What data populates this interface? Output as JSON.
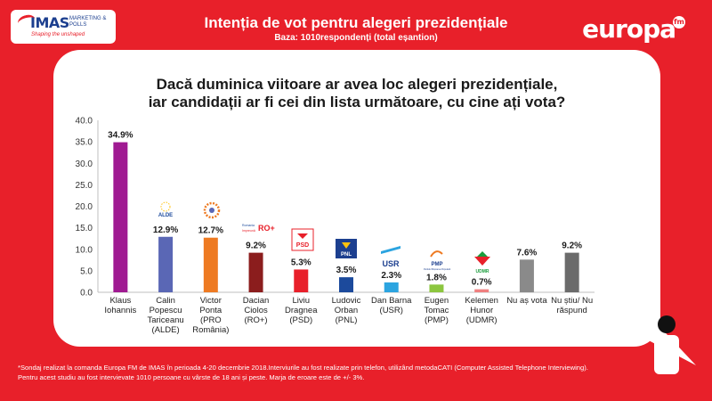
{
  "header": {
    "imas_logo_text": "IMAS",
    "imas_logo_sub": "MARKETING & POLLS",
    "imas_tagline": "Shaping the unshaped",
    "title": "Intenția de vot pentru alegeri prezidențiale",
    "base": "Baza: 1010respondenți (total eșantion)",
    "europa_logo": "europa",
    "europa_fm": "fm"
  },
  "question": {
    "line1": "Dacă duminica viitoare ar avea loc alegeri prezidențiale,",
    "line2": "iar candidații ar fi cei din lista următoare, cu cine ați vota?"
  },
  "chart_data": {
    "type": "bar",
    "categories": [
      [
        "Klaus",
        "Iohannis"
      ],
      [
        "Calin",
        "Popescu",
        "Tariceanu",
        "(ALDE)"
      ],
      [
        "Victor",
        "Ponta",
        "(PRO",
        "România)"
      ],
      [
        "Dacian",
        "Ciolos",
        "(RO+)"
      ],
      [
        "Liviu",
        "Dragnea",
        "(PSD)"
      ],
      [
        "Ludovic",
        "Orban",
        "(PNL)"
      ],
      [
        "Dan Barna",
        "(USR)"
      ],
      [
        "Eugen",
        "Tomac",
        "(PMP)"
      ],
      [
        "Kelemen",
        "Hunor",
        "(UDMR)"
      ],
      [
        "Nu aș vota"
      ],
      [
        "Nu știu/ Nu",
        "răspund"
      ]
    ],
    "values": [
      34.9,
      12.9,
      12.7,
      9.2,
      5.3,
      3.5,
      2.3,
      1.8,
      0.7,
      7.6,
      9.2
    ],
    "value_labels": [
      "34.9%",
      "12.9%",
      "12.7%",
      "9.2%",
      "5.3%",
      "3.5%",
      "2.3%",
      "1.8%",
      "0.7%",
      "7.6%",
      "9.2%"
    ],
    "colors": [
      "#a01a92",
      "#5a67b5",
      "#ee7a22",
      "#8b1d1d",
      "#e8202a",
      "#1c4a9c",
      "#2ca4e0",
      "#8cc63f",
      "#f08080",
      "#8a8a8a",
      "#6b6b6b"
    ],
    "yticks": [
      "0.0",
      "5.0",
      "10.0",
      "15.0",
      "20.0",
      "25.0",
      "30.0",
      "35.0",
      "40.0"
    ],
    "ylim": [
      0,
      40
    ],
    "party_logos": {
      "alde": "ALDE",
      "ro_plus": "RO+",
      "ro_plus_sub1": "Romania",
      "ro_plus_sub2": "Impreună",
      "psd": "PSD",
      "pnl": "PNL",
      "usr": "USR",
      "pmp": "PMP",
      "pmp_sub": "Partidul Mișcarea Populară",
      "udmr": "UDMR"
    }
  },
  "footnote": {
    "line1": "*Sondaj realizat la comanda Europa FM de IMAS în perioada 4-20 decembrie 2018.Interviurile au fost realizate prin telefon, utilizând metodaCATI (Computer Assisted Telephone Interviewing).",
    "line2": "Pentru acest studiu au fost intervievate 1010 persoane cu vârste de 18 ani și peste. Marja de eroare este de +/- 3%."
  }
}
